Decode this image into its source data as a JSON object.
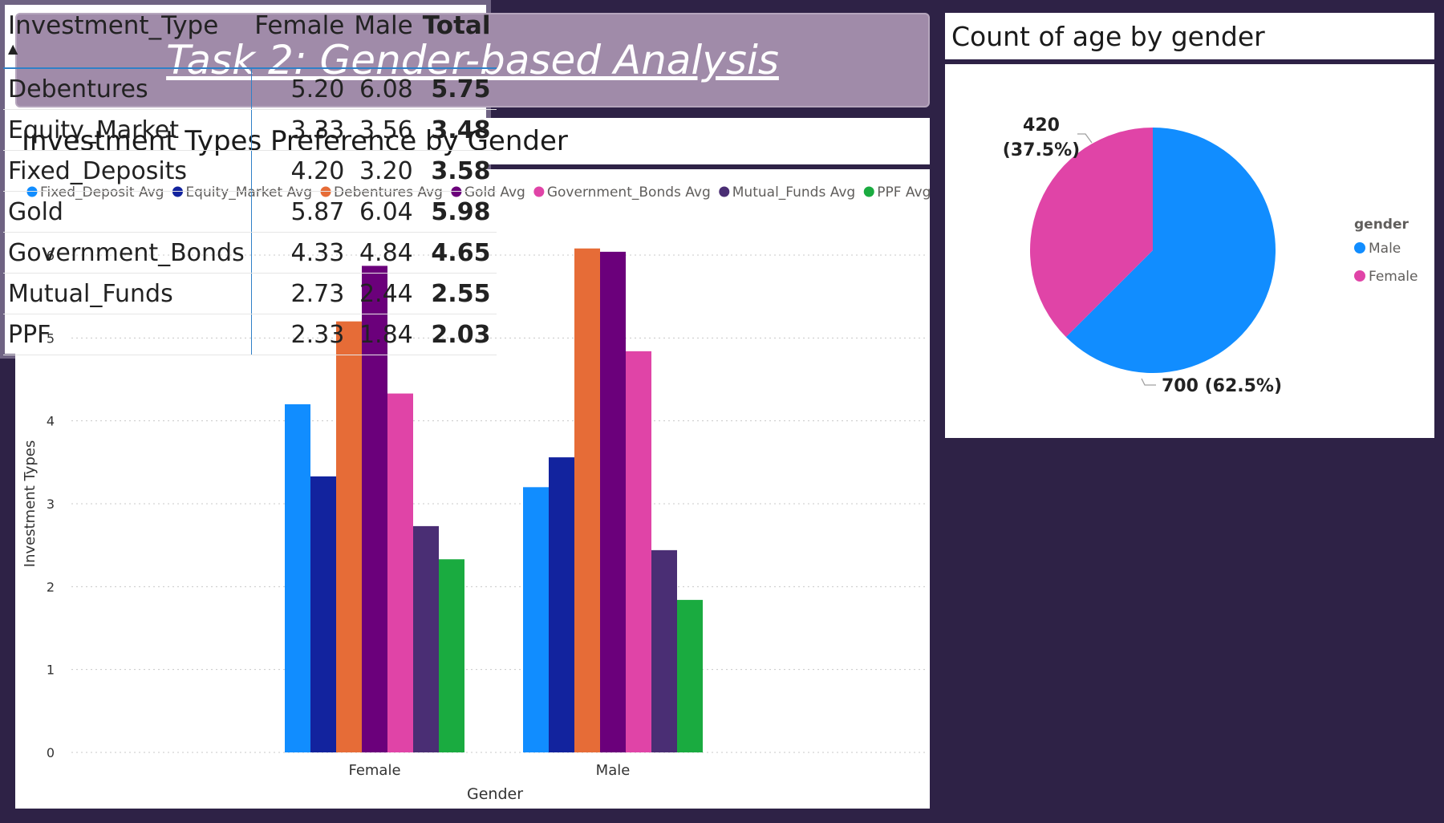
{
  "title": "Task 2: Gender-based Analysis",
  "bar_chart_title": "Investment Types Preference by Gender",
  "pie_chart_title": "Count of age by gender",
  "chart_data": [
    {
      "type": "bar",
      "title": "Investment Types Preference by Gender",
      "xlabel": "Gender",
      "ylabel": "Investment Types",
      "categories": [
        "Female",
        "Male"
      ],
      "ylim": [
        0,
        6
      ],
      "yticks": [
        0,
        1,
        2,
        3,
        4,
        5,
        6
      ],
      "grid": true,
      "legend_position": "top-left",
      "series": [
        {
          "name": "Fixed_Deposit Avg",
          "color": "#118dff",
          "values": [
            4.2,
            3.2
          ]
        },
        {
          "name": "Equity_Market Avg",
          "color": "#12239e",
          "values": [
            3.33,
            3.56
          ]
        },
        {
          "name": "Debentures Avg",
          "color": "#e66c37",
          "values": [
            5.2,
            6.08
          ]
        },
        {
          "name": "Gold Avg",
          "color": "#6b007b",
          "values": [
            5.87,
            6.04
          ]
        },
        {
          "name": "Government_Bonds Avg",
          "color": "#e044a7",
          "values": [
            4.33,
            4.84
          ]
        },
        {
          "name": "Mutual_Funds Avg",
          "color": "#4a2e74",
          "values": [
            2.73,
            2.44
          ]
        },
        {
          "name": "PPF Avg",
          "color": "#1aab40",
          "values": [
            2.33,
            1.84
          ]
        }
      ]
    },
    {
      "type": "pie",
      "title": "Count of age by gender",
      "legend_title": "gender",
      "legend_position": "right",
      "slices": [
        {
          "name": "Male",
          "value": 700,
          "percent": "62.5%",
          "color": "#118dff",
          "label": "700 (62.5%)"
        },
        {
          "name": "Female",
          "value": 420,
          "percent": "37.5%",
          "color": "#e044a7",
          "label_value": "420",
          "label_percent": "(37.5%)"
        }
      ]
    },
    {
      "type": "table",
      "columns": [
        "Investment_Type",
        "Female",
        "Male",
        "Total"
      ],
      "rows": [
        [
          "Debentures",
          "5.20",
          "6.08",
          "5.75"
        ],
        [
          "Equity_Market",
          "3.33",
          "3.56",
          "3.48"
        ],
        [
          "Fixed_Deposits",
          "4.20",
          "3.20",
          "3.58"
        ],
        [
          "Gold",
          "5.87",
          "6.04",
          "5.98"
        ],
        [
          "Government_Bonds",
          "4.33",
          "4.84",
          "4.65"
        ],
        [
          "Mutual_Funds",
          "2.73",
          "2.44",
          "2.55"
        ],
        [
          "PPF",
          "2.33",
          "1.84",
          "2.03"
        ]
      ]
    }
  ]
}
